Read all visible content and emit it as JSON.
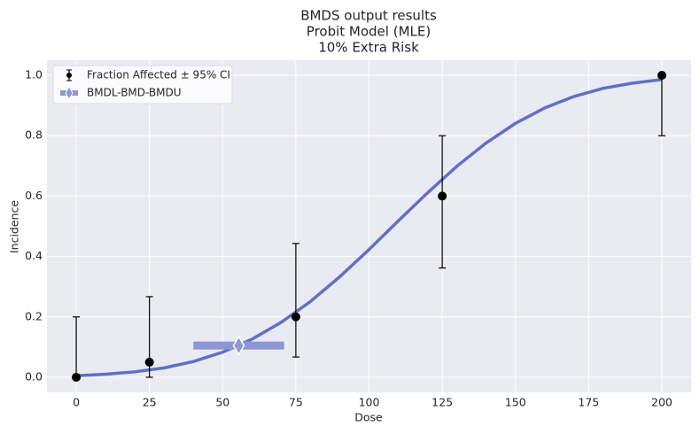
{
  "chart_data": {
    "type": "scatter",
    "title": [
      "BMDS output results",
      "Probit Model (MLE)",
      "10% Extra Risk"
    ],
    "x_label": "Dose",
    "y_label": "Incidence",
    "xlim": [
      -10,
      210
    ],
    "ylim": [
      -0.05,
      1.05
    ],
    "xticks": [
      0,
      25,
      50,
      75,
      100,
      125,
      150,
      175,
      200
    ],
    "yticks": [
      {
        "value": 0,
        "label": "0.0"
      },
      0.2,
      0.4,
      0.6,
      0.8,
      {
        "value": 1,
        "label": "1.0"
      }
    ],
    "grid": true,
    "legend": "upper-left",
    "series": [
      {
        "name": "Fraction Affected ± 95% CI",
        "color": "#000000",
        "x": [
          0,
          25,
          75,
          125,
          200
        ],
        "values": [
          0,
          0.05,
          0.2,
          0.6,
          1.0
        ],
        "lower": [
          0,
          0,
          0.067,
          0.362,
          0.8
        ],
        "upper": [
          0.2,
          0.267,
          0.443,
          0.8,
          1.0
        ]
      },
      {
        "name": "BMDL-BMD-BMDU",
        "color": "#8e96d4",
        "x": [
          55.5
        ],
        "values": [
          0.105
        ],
        "xlower": [
          40
        ],
        "xupper": [
          71
        ]
      }
    ],
    "model_curve": {
      "color": "#6170c2",
      "x": [
        0,
        10,
        20,
        30,
        40,
        50,
        60,
        70,
        80,
        90,
        100,
        110,
        120,
        130,
        140,
        150,
        160,
        170,
        180,
        190,
        200
      ],
      "values": [
        0.005,
        0.01,
        0.018,
        0.031,
        0.052,
        0.083,
        0.126,
        0.182,
        0.251,
        0.333,
        0.423,
        0.518,
        0.611,
        0.699,
        0.776,
        0.841,
        0.892,
        0.93,
        0.957,
        0.974,
        0.986
      ]
    }
  }
}
